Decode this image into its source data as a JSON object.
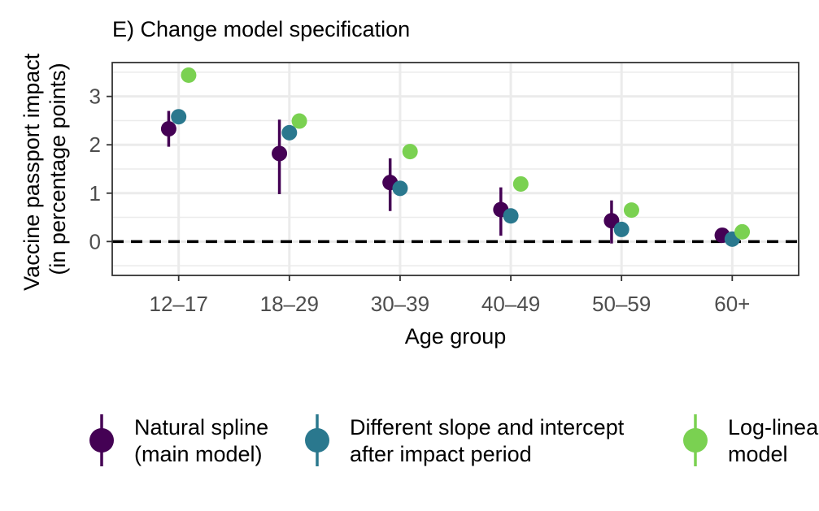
{
  "chart_data": {
    "type": "scatter",
    "title": "E) Change model specification",
    "xlabel": "Age group",
    "ylabel_lines": [
      "Vaccine passport impact",
      "(in percentage points)"
    ],
    "categories": [
      "12–17",
      "18–29",
      "30–39",
      "40–49",
      "50–59",
      "60+"
    ],
    "ylim": [
      -0.7,
      3.7
    ],
    "yticks": [
      "0",
      "1",
      "2",
      "3"
    ],
    "grid": true,
    "reference_line": {
      "y": 0,
      "style": "dashed"
    },
    "legend_position": "bottom",
    "series": [
      {
        "name_lines": [
          "Natural spline",
          "(main model)"
        ],
        "color": "#440154",
        "values": [
          2.33,
          1.82,
          1.22,
          0.66,
          0.43,
          0.13
        ],
        "lower": [
          1.96,
          0.98,
          0.63,
          0.12,
          -0.04,
          null
        ],
        "upper": [
          2.7,
          2.52,
          1.72,
          1.12,
          0.85,
          null
        ]
      },
      {
        "name_lines": [
          "Different slope and intercept",
          "after impact period"
        ],
        "color": "#2a788e",
        "values": [
          2.58,
          2.25,
          1.1,
          0.53,
          0.25,
          0.05
        ],
        "lower": [],
        "upper": []
      },
      {
        "name_lines": [
          "Log-linear",
          "model"
        ],
        "color": "#7ad151",
        "values": [
          3.44,
          2.49,
          1.86,
          1.19,
          0.65,
          0.2
        ],
        "lower": [],
        "upper": []
      }
    ]
  }
}
